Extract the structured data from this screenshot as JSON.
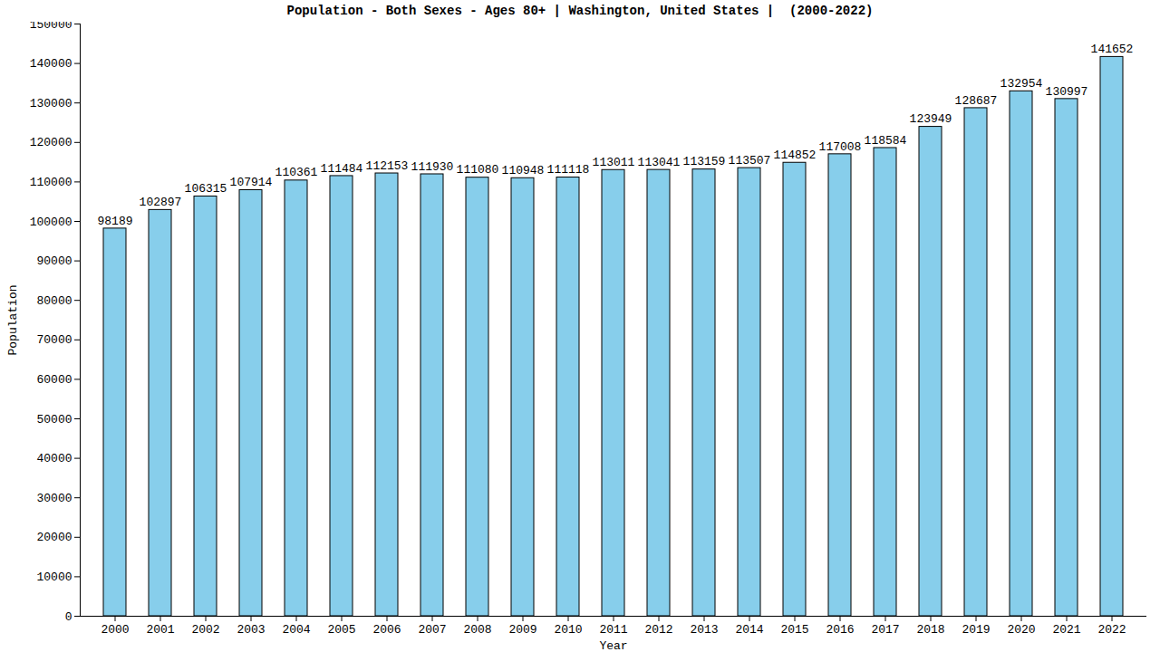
{
  "chart_data": {
    "type": "bar",
    "title": "Population - Both Sexes - Ages 80+ | Washington, United States |  (2000-2022)",
    "x_label": "Year",
    "y_label": "Population",
    "categories": [
      "2000",
      "2001",
      "2002",
      "2003",
      "2004",
      "2005",
      "2006",
      "2007",
      "2008",
      "2009",
      "2010",
      "2011",
      "2012",
      "2013",
      "2014",
      "2015",
      "2016",
      "2017",
      "2018",
      "2019",
      "2020",
      "2021",
      "2022"
    ],
    "values": [
      98189,
      102897,
      106315,
      107914,
      110361,
      111484,
      112153,
      111930,
      111080,
      110948,
      111118,
      113011,
      113041,
      113159,
      113507,
      114852,
      117008,
      118584,
      123949,
      128687,
      132954,
      130997,
      141652
    ],
    "color": "#87ceeb",
    "ylim": [
      0,
      150000
    ],
    "yticks": [
      0,
      10000,
      20000,
      30000,
      40000,
      50000,
      60000,
      70000,
      80000,
      90000,
      100000,
      110000,
      120000,
      130000,
      140000,
      150000
    ],
    "grid": false,
    "data_labels": true
  }
}
